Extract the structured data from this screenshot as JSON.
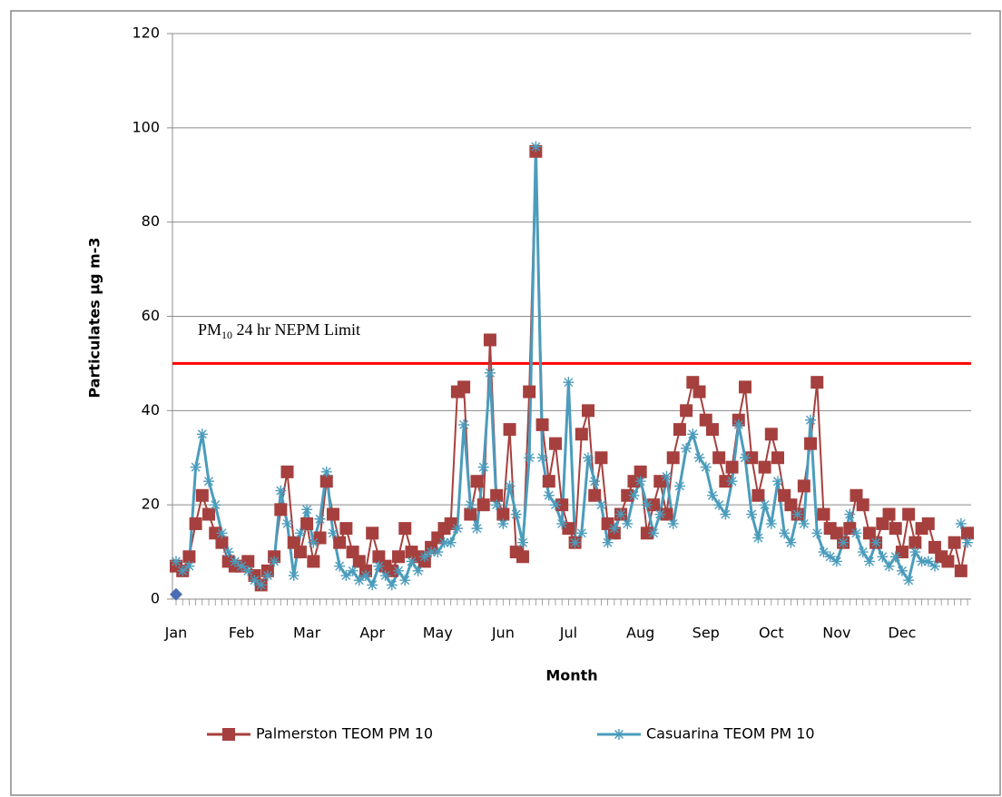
{
  "chart_data": {
    "type": "line",
    "x_label": "Month",
    "y_label": "Particulates  µg m-3",
    "categories": [
      "Jan",
      null,
      null,
      null,
      null,
      null,
      null,
      null,
      null,
      null,
      "Feb",
      null,
      null,
      null,
      null,
      null,
      null,
      null,
      null,
      null,
      "Mar",
      null,
      null,
      null,
      null,
      null,
      null,
      null,
      null,
      null,
      "Apr",
      null,
      null,
      null,
      null,
      null,
      null,
      null,
      null,
      null,
      "May",
      null,
      null,
      null,
      null,
      null,
      null,
      null,
      null,
      null,
      "Jun",
      null,
      null,
      null,
      null,
      null,
      null,
      null,
      null,
      null,
      "Jul",
      null,
      null,
      null,
      null,
      null,
      null,
      null,
      null,
      null,
      null,
      "Aug",
      null,
      null,
      null,
      null,
      null,
      null,
      null,
      null,
      null,
      "Sep",
      null,
      null,
      null,
      null,
      null,
      null,
      null,
      null,
      null,
      "Oct",
      null,
      null,
      null,
      null,
      null,
      null,
      null,
      null,
      null,
      "Nov",
      null,
      null,
      null,
      null,
      null,
      null,
      null,
      null,
      null,
      "Dec",
      null,
      null,
      null,
      null,
      null,
      null,
      null,
      null,
      null,
      null
    ],
    "series": [
      {
        "name": "Palmerston TEOM PM 10",
        "color": "#a5403e",
        "marker": "square",
        "values": [
          7,
          6,
          9,
          16,
          22,
          18,
          14,
          12,
          8,
          7,
          7,
          8,
          5,
          3,
          6,
          9,
          19,
          27,
          12,
          10,
          16,
          8,
          13,
          25,
          18,
          12,
          15,
          10,
          8,
          6,
          14,
          9,
          7,
          6,
          9,
          15,
          10,
          9,
          8,
          11,
          13,
          15,
          16,
          44,
          45,
          18,
          25,
          20,
          55,
          22,
          18,
          36,
          10,
          9,
          44,
          95,
          37,
          25,
          33,
          20,
          15,
          12,
          35,
          40,
          22,
          30,
          16,
          14,
          18,
          22,
          25,
          27,
          14,
          20,
          25,
          18,
          30,
          36,
          40,
          46,
          44,
          38,
          36,
          30,
          25,
          28,
          38,
          45,
          30,
          22,
          28,
          35,
          30,
          22,
          20,
          18,
          24,
          33,
          46,
          18,
          15,
          14,
          12,
          15,
          22,
          20,
          14,
          12,
          16,
          18,
          15,
          10,
          18,
          12,
          15,
          16,
          11,
          9,
          8,
          12,
          6,
          14
        ]
      },
      {
        "name": "Casuarina TEOM PM 10",
        "color": "#4b9cbc",
        "marker": "star",
        "values": [
          8,
          6,
          7,
          28,
          35,
          25,
          20,
          14,
          10,
          8,
          7,
          6,
          4,
          3,
          5,
          8,
          23,
          16,
          5,
          14,
          19,
          12,
          17,
          27,
          14,
          7,
          5,
          6,
          4,
          5,
          3,
          7,
          5,
          3,
          6,
          4,
          8,
          6,
          9,
          10,
          10,
          12,
          12,
          15,
          37,
          20,
          15,
          28,
          48,
          20,
          16,
          24,
          18,
          12,
          30,
          96,
          30,
          22,
          20,
          16,
          46,
          12,
          14,
          30,
          25,
          20,
          12,
          15,
          18,
          16,
          22,
          25,
          20,
          14,
          18,
          26,
          16,
          24,
          32,
          35,
          30,
          28,
          22,
          20,
          18,
          25,
          37,
          30,
          18,
          13,
          20,
          16,
          25,
          14,
          12,
          18,
          16,
          38,
          14,
          10,
          9,
          8,
          12,
          18,
          14,
          10,
          8,
          12,
          9,
          7,
          9,
          6,
          4,
          10,
          8,
          8,
          7,
          null,
          null,
          null,
          16,
          12
        ]
      }
    ],
    "extra_points": [
      {
        "index": 0,
        "value": 1,
        "color": "#4a6db5"
      }
    ],
    "reference_line": {
      "value": 50,
      "color": "#ff0000",
      "label": {
        "text": "PM",
        "subscript": "10",
        "rest": " 24 hr NEPM Limit"
      }
    },
    "ylim": [
      0,
      120
    ],
    "yticks": [
      0,
      20,
      40,
      60,
      80,
      100,
      120
    ],
    "grid": true,
    "legend": "bottom"
  }
}
